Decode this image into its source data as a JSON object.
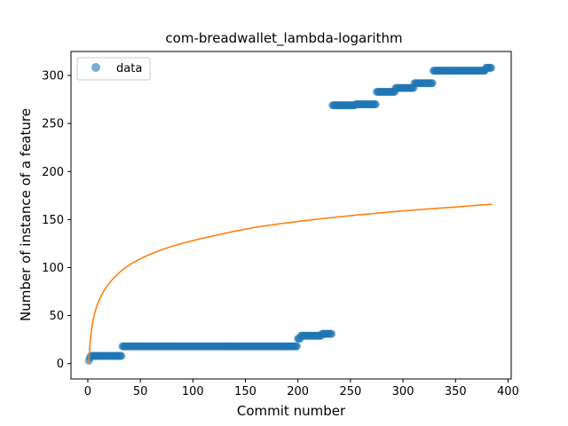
{
  "chart_data": {
    "type": "scatter",
    "title": "com-breadwallet_lambda-logarithm",
    "xlabel": "Commit number",
    "ylabel": "Number of instance of a feature",
    "xlim": [
      -16,
      403
    ],
    "ylim": [
      -16,
      325
    ],
    "xticks": [
      0,
      50,
      100,
      150,
      200,
      250,
      300,
      350,
      400
    ],
    "yticks": [
      0,
      50,
      100,
      150,
      200,
      250,
      300
    ],
    "grid": false,
    "legend_position": "upper-left",
    "colors": {
      "data": "#1f77b4",
      "fit": "#ff7f0e"
    },
    "series": [
      {
        "name": "data",
        "kind": "points",
        "segments": [
          {
            "x_start": 1,
            "x_end": 1,
            "y": 3
          },
          {
            "x_start": 2,
            "x_end": 2,
            "y": 6
          },
          {
            "x_start": 3,
            "x_end": 32,
            "y": 8
          },
          {
            "x_start": 33,
            "x_end": 199,
            "y": 18
          },
          {
            "x_start": 200,
            "x_end": 202,
            "y": 26
          },
          {
            "x_start": 203,
            "x_end": 222,
            "y": 29
          },
          {
            "x_start": 223,
            "x_end": 232,
            "y": 31
          },
          {
            "x_start": 233,
            "x_end": 254,
            "y": 269
          },
          {
            "x_start": 255,
            "x_end": 274,
            "y": 270
          },
          {
            "x_start": 275,
            "x_end": 292,
            "y": 283
          },
          {
            "x_start": 293,
            "x_end": 310,
            "y": 287
          },
          {
            "x_start": 311,
            "x_end": 328,
            "y": 292
          },
          {
            "x_start": 329,
            "x_end": 378,
            "y": 305
          },
          {
            "x_start": 379,
            "x_end": 384,
            "y": 308
          }
        ]
      },
      {
        "kind": "fit_curve",
        "model": "logarithm",
        "curve": [
          {
            "x": 1,
            "y": 0
          },
          {
            "x": 2,
            "y": 20
          },
          {
            "x": 5,
            "y": 45
          },
          {
            "x": 10,
            "y": 64
          },
          {
            "x": 20,
            "y": 83
          },
          {
            "x": 40,
            "y": 103
          },
          {
            "x": 80,
            "y": 122
          },
          {
            "x": 120,
            "y": 133
          },
          {
            "x": 160,
            "y": 142
          },
          {
            "x": 200,
            "y": 148
          },
          {
            "x": 250,
            "y": 154
          },
          {
            "x": 300,
            "y": 159
          },
          {
            "x": 350,
            "y": 163
          },
          {
            "x": 385,
            "y": 166
          }
        ]
      }
    ]
  }
}
